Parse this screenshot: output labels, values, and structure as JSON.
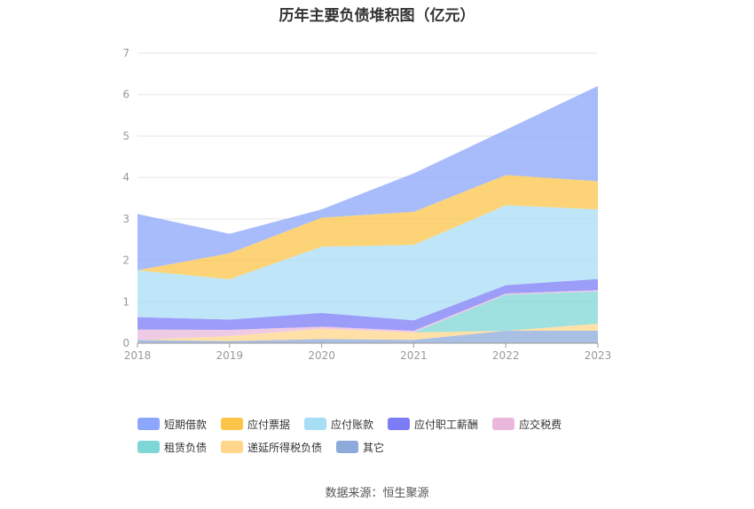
{
  "chart_data": {
    "type": "area",
    "stacked": true,
    "title": "历年主要负债堆积图（亿元）",
    "categories": [
      "2018",
      "2019",
      "2020",
      "2021",
      "2022",
      "2023"
    ],
    "y_ticks": [
      "0",
      "1",
      "2",
      "3",
      "4",
      "5",
      "6",
      "7"
    ],
    "ylim": [
      0,
      7
    ],
    "grid": true,
    "legend_position": "bottom",
    "series": [
      {
        "name": "其它",
        "color": "#8eaadb",
        "values": [
          0.08,
          0.05,
          0.1,
          0.08,
          0.3,
          0.3
        ]
      },
      {
        "name": "递延所得税负债",
        "color": "#ffd68a",
        "values": [
          0.0,
          0.12,
          0.25,
          0.18,
          0.0,
          0.17
        ]
      },
      {
        "name": "租赁负债",
        "color": "#7fd6d6",
        "values": [
          0.0,
          0.0,
          0.0,
          0.0,
          0.87,
          0.78
        ]
      },
      {
        "name": "应交税费",
        "color": "#eab8dc",
        "values": [
          0.25,
          0.15,
          0.05,
          0.04,
          0.03,
          0.03
        ]
      },
      {
        "name": "应付职工薪酬",
        "color": "#7b7cf6",
        "values": [
          0.3,
          0.25,
          0.33,
          0.25,
          0.2,
          0.27
        ]
      },
      {
        "name": "应付账款",
        "color": "#a8ddf6",
        "values": [
          1.13,
          0.97,
          1.6,
          1.82,
          1.93,
          1.68
        ]
      },
      {
        "name": "应付票据",
        "color": "#fbc54a",
        "values": [
          0.0,
          0.63,
          0.7,
          0.8,
          0.73,
          0.68
        ]
      },
      {
        "name": "短期借款",
        "color": "#8ba6fb",
        "values": [
          1.36,
          0.47,
          0.2,
          0.93,
          1.09,
          2.3
        ]
      }
    ],
    "legend_order": [
      "短期借款",
      "应付票据",
      "应付账款",
      "应付职工薪酬",
      "应交税费",
      "租赁负债",
      "递延所得税负债",
      "其它"
    ]
  },
  "source_note": "数据来源：恒生聚源"
}
